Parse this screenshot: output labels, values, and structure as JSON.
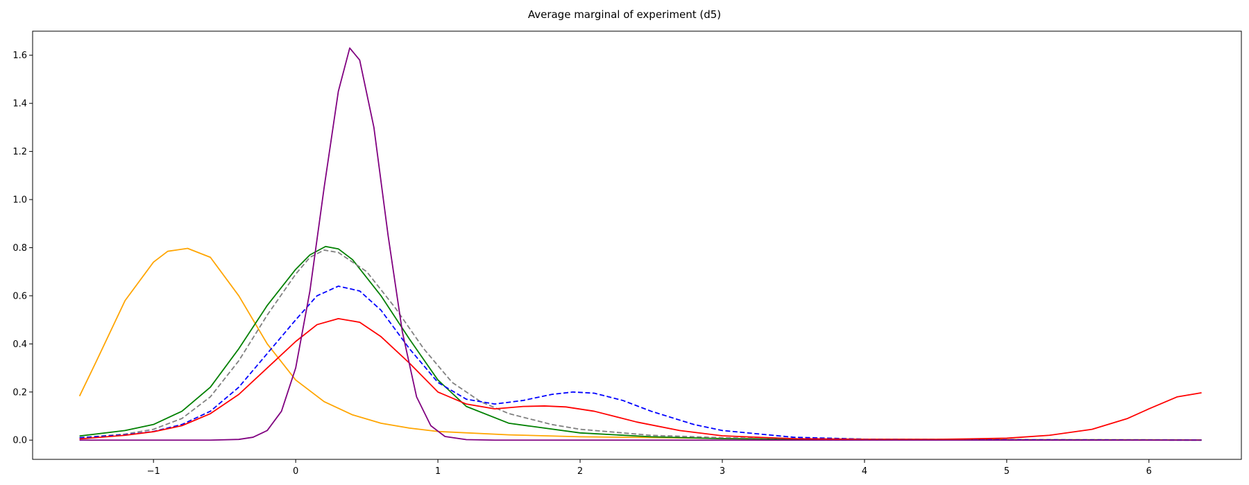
{
  "chart_data": {
    "type": "line",
    "title": "Average marginal of experiment (d5)",
    "xlabel": "",
    "ylabel": "",
    "xlim": [
      -1.85,
      6.65
    ],
    "ylim": [
      -0.08,
      1.7
    ],
    "xticks": [
      -1,
      0,
      1,
      2,
      3,
      4,
      5,
      6
    ],
    "xtick_labels": [
      "−1",
      "0",
      "1",
      "2",
      "3",
      "4",
      "5",
      "6"
    ],
    "yticks": [
      0.0,
      0.2,
      0.4,
      0.6,
      0.8,
      1.0,
      1.2,
      1.4,
      1.6
    ],
    "ytick_labels": [
      "0.0",
      "0.2",
      "0.4",
      "0.6",
      "0.8",
      "1.0",
      "1.2",
      "1.4",
      "1.6"
    ],
    "grid": false,
    "series": [
      {
        "color": "#ffa500",
        "style": "solid",
        "points": [
          [
            -1.52,
            0.183
          ],
          [
            -1.4,
            0.33
          ],
          [
            -1.2,
            0.58
          ],
          [
            -1.0,
            0.74
          ],
          [
            -0.9,
            0.785
          ],
          [
            -0.76,
            0.797
          ],
          [
            -0.6,
            0.76
          ],
          [
            -0.4,
            0.6
          ],
          [
            -0.2,
            0.4
          ],
          [
            0.0,
            0.25
          ],
          [
            0.2,
            0.16
          ],
          [
            0.4,
            0.105
          ],
          [
            0.6,
            0.07
          ],
          [
            0.8,
            0.05
          ],
          [
            1.0,
            0.036
          ],
          [
            1.5,
            0.022
          ],
          [
            2.0,
            0.014
          ],
          [
            3.0,
            0.007
          ],
          [
            4.0,
            0.004
          ],
          [
            5.0,
            0.002
          ],
          [
            6.37,
            0.001
          ]
        ]
      },
      {
        "color": "#008000",
        "style": "solid",
        "points": [
          [
            -1.52,
            0.017
          ],
          [
            -1.2,
            0.04
          ],
          [
            -1.0,
            0.065
          ],
          [
            -0.8,
            0.12
          ],
          [
            -0.6,
            0.22
          ],
          [
            -0.4,
            0.38
          ],
          [
            -0.2,
            0.56
          ],
          [
            0.0,
            0.71
          ],
          [
            0.1,
            0.77
          ],
          [
            0.21,
            0.805
          ],
          [
            0.3,
            0.795
          ],
          [
            0.4,
            0.75
          ],
          [
            0.6,
            0.6
          ],
          [
            0.8,
            0.42
          ],
          [
            1.0,
            0.25
          ],
          [
            1.2,
            0.14
          ],
          [
            1.5,
            0.07
          ],
          [
            2.0,
            0.03
          ],
          [
            2.5,
            0.014
          ],
          [
            3.0,
            0.006
          ],
          [
            4.0,
            0.002
          ],
          [
            6.37,
            0.0
          ]
        ]
      },
      {
        "color": "#808080",
        "style": "dashed",
        "points": [
          [
            -1.52,
            0.01
          ],
          [
            -1.2,
            0.025
          ],
          [
            -1.0,
            0.045
          ],
          [
            -0.8,
            0.09
          ],
          [
            -0.6,
            0.18
          ],
          [
            -0.4,
            0.33
          ],
          [
            -0.2,
            0.52
          ],
          [
            0.0,
            0.69
          ],
          [
            0.1,
            0.76
          ],
          [
            0.2,
            0.79
          ],
          [
            0.3,
            0.78
          ],
          [
            0.5,
            0.7
          ],
          [
            0.7,
            0.55
          ],
          [
            0.9,
            0.38
          ],
          [
            1.1,
            0.24
          ],
          [
            1.3,
            0.16
          ],
          [
            1.5,
            0.11
          ],
          [
            1.8,
            0.065
          ],
          [
            2.0,
            0.045
          ],
          [
            2.5,
            0.02
          ],
          [
            3.0,
            0.01
          ],
          [
            4.0,
            0.004
          ],
          [
            6.37,
            0.001
          ]
        ]
      },
      {
        "color": "#0000ff",
        "style": "dashed",
        "points": [
          [
            -1.52,
            0.01
          ],
          [
            -1.2,
            0.022
          ],
          [
            -1.0,
            0.036
          ],
          [
            -0.8,
            0.065
          ],
          [
            -0.6,
            0.12
          ],
          [
            -0.4,
            0.22
          ],
          [
            -0.2,
            0.36
          ],
          [
            0.0,
            0.5
          ],
          [
            0.15,
            0.6
          ],
          [
            0.3,
            0.64
          ],
          [
            0.45,
            0.62
          ],
          [
            0.6,
            0.54
          ],
          [
            0.8,
            0.38
          ],
          [
            1.0,
            0.24
          ],
          [
            1.2,
            0.17
          ],
          [
            1.4,
            0.15
          ],
          [
            1.6,
            0.165
          ],
          [
            1.8,
            0.19
          ],
          [
            1.95,
            0.2
          ],
          [
            2.1,
            0.195
          ],
          [
            2.3,
            0.165
          ],
          [
            2.5,
            0.12
          ],
          [
            2.8,
            0.065
          ],
          [
            3.0,
            0.04
          ],
          [
            3.5,
            0.012
          ],
          [
            4.0,
            0.004
          ],
          [
            5.0,
            0.001
          ],
          [
            6.37,
            0.0
          ]
        ]
      },
      {
        "color": "#ff0000",
        "style": "solid",
        "points": [
          [
            -1.52,
            0.005
          ],
          [
            -1.2,
            0.02
          ],
          [
            -1.0,
            0.035
          ],
          [
            -0.8,
            0.06
          ],
          [
            -0.6,
            0.11
          ],
          [
            -0.4,
            0.19
          ],
          [
            -0.2,
            0.3
          ],
          [
            0.0,
            0.41
          ],
          [
            0.15,
            0.48
          ],
          [
            0.3,
            0.505
          ],
          [
            0.45,
            0.49
          ],
          [
            0.6,
            0.43
          ],
          [
            0.8,
            0.32
          ],
          [
            1.0,
            0.2
          ],
          [
            1.2,
            0.15
          ],
          [
            1.4,
            0.13
          ],
          [
            1.6,
            0.14
          ],
          [
            1.75,
            0.142
          ],
          [
            1.9,
            0.138
          ],
          [
            2.1,
            0.12
          ],
          [
            2.4,
            0.075
          ],
          [
            2.7,
            0.04
          ],
          [
            3.0,
            0.018
          ],
          [
            3.5,
            0.006
          ],
          [
            4.0,
            0.003
          ],
          [
            4.5,
            0.003
          ],
          [
            5.0,
            0.008
          ],
          [
            5.3,
            0.02
          ],
          [
            5.6,
            0.045
          ],
          [
            5.85,
            0.09
          ],
          [
            6.0,
            0.13
          ],
          [
            6.2,
            0.18
          ],
          [
            6.37,
            0.197
          ]
        ]
      },
      {
        "color": "#800080",
        "style": "solid",
        "points": [
          [
            -1.52,
            0.0
          ],
          [
            -0.6,
            0.0
          ],
          [
            -0.4,
            0.003
          ],
          [
            -0.3,
            0.012
          ],
          [
            -0.2,
            0.04
          ],
          [
            -0.1,
            0.12
          ],
          [
            0.0,
            0.3
          ],
          [
            0.1,
            0.62
          ],
          [
            0.2,
            1.05
          ],
          [
            0.3,
            1.45
          ],
          [
            0.38,
            1.63
          ],
          [
            0.45,
            1.58
          ],
          [
            0.55,
            1.3
          ],
          [
            0.65,
            0.85
          ],
          [
            0.75,
            0.45
          ],
          [
            0.85,
            0.18
          ],
          [
            0.95,
            0.06
          ],
          [
            1.05,
            0.015
          ],
          [
            1.2,
            0.002
          ],
          [
            1.4,
            0.0
          ],
          [
            6.37,
            0.0
          ]
        ]
      }
    ]
  }
}
